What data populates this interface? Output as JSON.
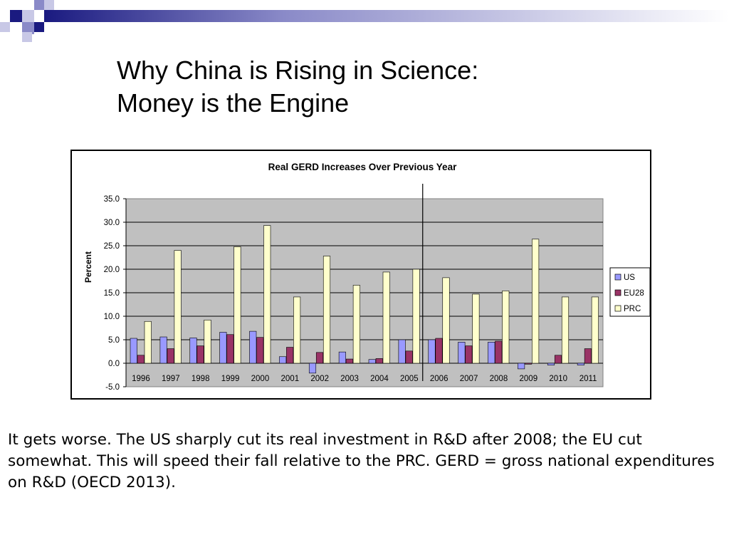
{
  "slide": {
    "title_line1": "Why China is Rising in Science:",
    "title_line2": "Money is the Engine",
    "caption": "It gets worse. The US sharply cut its real investment in R&D after 2008; the EU cut somewhat. This will speed their fall relative to the PRC.  GERD = gross national expenditures on R&D (OECD 2013)."
  },
  "colors": {
    "deco_dark": "#1a1a80",
    "deco_mid": "#8a8ac8",
    "deco_light": "#c8c8e6",
    "plot_bg": "#c0c0c0",
    "us": "#9999ff",
    "eu28": "#993366",
    "prc": "#ffffcc"
  },
  "chart_data": {
    "type": "bar",
    "title": "Real GERD Increases Over Previous Year",
    "ylabel": "Percent",
    "xlabel": "",
    "ylim": [
      -5,
      35
    ],
    "yticks": [
      "35.0",
      "30.0",
      "25.0",
      "20.0",
      "15.0",
      "10.0",
      "5.0",
      "0.0",
      "-5.0"
    ],
    "grid": true,
    "legend_position": "right",
    "divider_after_category": "2005",
    "categories": [
      "1996",
      "1997",
      "1998",
      "1999",
      "2000",
      "2001",
      "2002",
      "2003",
      "2004",
      "2005",
      "2006",
      "2007",
      "2008",
      "2009",
      "2010",
      "2011"
    ],
    "series": [
      {
        "name": "US",
        "color_key": "us",
        "values": [
          5.3,
          5.6,
          5.4,
          6.6,
          6.8,
          1.4,
          -2.1,
          2.4,
          0.8,
          5.0,
          5.0,
          4.5,
          4.5,
          -1.2,
          -0.4,
          -0.4
        ]
      },
      {
        "name": "EU28",
        "color_key": "eu28",
        "values": [
          1.7,
          3.1,
          3.7,
          6.1,
          5.5,
          3.4,
          2.3,
          0.9,
          1.0,
          2.6,
          5.3,
          3.7,
          4.7,
          -0.2,
          1.7,
          3.1
        ]
      },
      {
        "name": "PRC",
        "color_key": "prc",
        "values": [
          8.9,
          24.0,
          9.2,
          24.8,
          29.3,
          14.1,
          22.8,
          16.6,
          19.4,
          20.0,
          18.2,
          14.7,
          15.4,
          26.4,
          14.1,
          14.1
        ]
      }
    ]
  }
}
